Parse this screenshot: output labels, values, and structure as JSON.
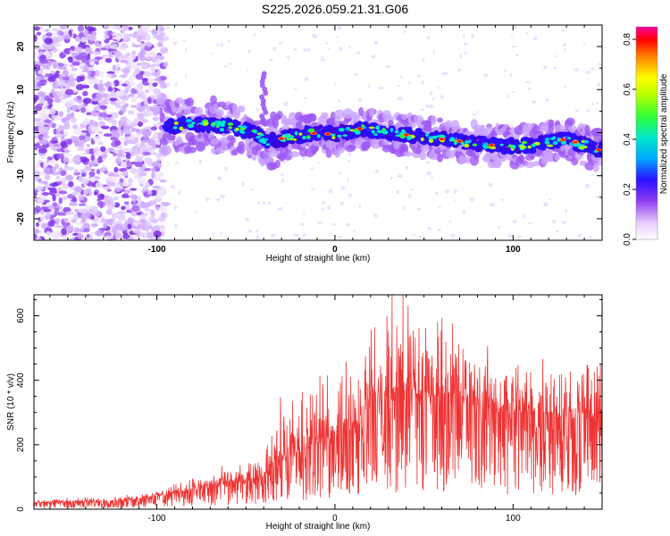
{
  "title": "S225.2026.059.21.31.G06",
  "chart_data": [
    {
      "type": "heatmap",
      "xlabel": "Height of straight line (km)",
      "ylabel": "Frequency (Hz)",
      "xlim": [
        -169,
        150
      ],
      "ylim": [
        -25,
        25
      ],
      "xticks": [
        -100,
        0,
        100
      ],
      "yticks": [
        -20,
        -10,
        0,
        10,
        20
      ],
      "colorbar": {
        "label": "Normalized spectral amplitude",
        "range": [
          0,
          0.85
        ],
        "ticks": [
          "0.0",
          "0.2",
          "0.4",
          "0.6",
          "0.8"
        ]
      },
      "ridge": {
        "description_points_x": [
          -95,
          -80,
          -60,
          -45,
          -38,
          -25,
          -10,
          0,
          15,
          30,
          50,
          70,
          90,
          110,
          130,
          148
        ],
        "description_points_freq": [
          1.5,
          2,
          1.5,
          0,
          -2,
          -1,
          0,
          -0.5,
          1,
          0,
          -1,
          -2,
          -3,
          -3,
          -1.5,
          -4
        ]
      }
    },
    {
      "type": "line",
      "xlabel": "Height of straight line (km)",
      "ylabel": "SNR (10 * v/v)",
      "xlim": [
        -169,
        150
      ],
      "ylim": [
        0,
        665
      ],
      "xticks": [
        -100,
        0,
        100
      ],
      "yticks": [
        0,
        200,
        400,
        600
      ],
      "series": [
        {
          "name": "SNR",
          "color": "#ee3333",
          "envelope_x": [
            -169,
            -120,
            -100,
            -80,
            -60,
            -40,
            -35,
            -20,
            -10,
            0,
            10,
            20,
            30,
            40,
            50,
            60,
            70,
            80,
            90,
            100,
            110,
            120,
            130,
            140,
            150
          ],
          "envelope_mean": [
            20,
            25,
            40,
            60,
            80,
            90,
            140,
            170,
            200,
            230,
            250,
            320,
            330,
            350,
            340,
            350,
            330,
            320,
            300,
            300,
            290,
            290,
            280,
            280,
            270
          ],
          "envelope_peak": [
            30,
            40,
            60,
            100,
            130,
            150,
            330,
            380,
            420,
            430,
            510,
            570,
            640,
            665,
            620,
            665,
            560,
            520,
            500,
            480,
            470,
            480,
            450,
            470,
            460
          ]
        }
      ]
    }
  ]
}
